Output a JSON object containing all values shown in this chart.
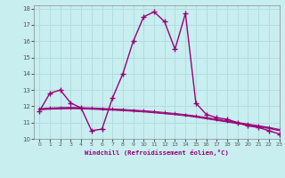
{
  "xlabel": "Windchill (Refroidissement éolien,°C)",
  "xlim": [
    -0.5,
    23
  ],
  "ylim": [
    10,
    18.2
  ],
  "xticks": [
    0,
    1,
    2,
    3,
    4,
    5,
    6,
    7,
    8,
    9,
    10,
    11,
    12,
    13,
    14,
    15,
    16,
    17,
    18,
    19,
    20,
    21,
    22,
    23
  ],
  "yticks": [
    10,
    11,
    12,
    13,
    14,
    15,
    16,
    17,
    18
  ],
  "bg_color": "#c8eef0",
  "grid_color": "#b0dce0",
  "line_color": "#990077",
  "line1_x": [
    0,
    1,
    2,
    3,
    4,
    5,
    6,
    7,
    8,
    9,
    10,
    11,
    12,
    13,
    14,
    15,
    16,
    17,
    18,
    19,
    20,
    21,
    22,
    23
  ],
  "line1_y": [
    11.7,
    12.8,
    13.0,
    12.2,
    11.9,
    10.5,
    10.6,
    12.5,
    14.0,
    16.0,
    17.5,
    17.8,
    17.2,
    15.5,
    17.7,
    12.2,
    11.5,
    11.3,
    11.2,
    11.0,
    10.8,
    10.7,
    10.5,
    10.3
  ],
  "line2_x": [
    0,
    1,
    2,
    3,
    4,
    5,
    6,
    7,
    8,
    9,
    10,
    11,
    12,
    13,
    14,
    15,
    16,
    17,
    18,
    19,
    20,
    21,
    22,
    23
  ],
  "line2_y": [
    11.85,
    11.9,
    11.92,
    11.93,
    11.92,
    11.9,
    11.87,
    11.84,
    11.81,
    11.77,
    11.73,
    11.68,
    11.62,
    11.56,
    11.49,
    11.41,
    11.31,
    11.21,
    11.11,
    11.01,
    10.91,
    10.81,
    10.71,
    10.58
  ],
  "line3_x": [
    0,
    1,
    2,
    3,
    4,
    5,
    6,
    7,
    8,
    9,
    10,
    11,
    12,
    13,
    14,
    15,
    16,
    17,
    18,
    19,
    20,
    21,
    22,
    23
  ],
  "line3_y": [
    11.82,
    11.86,
    11.88,
    11.89,
    11.88,
    11.86,
    11.83,
    11.8,
    11.77,
    11.73,
    11.69,
    11.64,
    11.58,
    11.52,
    11.45,
    11.37,
    11.27,
    11.17,
    11.07,
    10.97,
    10.87,
    10.77,
    10.67,
    10.54
  ],
  "line4_x": [
    0,
    1,
    2,
    3,
    4,
    5,
    6,
    7,
    8,
    9,
    10,
    11,
    12,
    13,
    14,
    15,
    16,
    17,
    18,
    19,
    20,
    21,
    22,
    23
  ],
  "line4_y": [
    11.78,
    11.82,
    11.84,
    11.85,
    11.84,
    11.82,
    11.79,
    11.76,
    11.73,
    11.69,
    11.65,
    11.6,
    11.54,
    11.48,
    11.41,
    11.33,
    11.23,
    11.13,
    11.03,
    10.93,
    10.83,
    10.73,
    10.63,
    10.5
  ]
}
